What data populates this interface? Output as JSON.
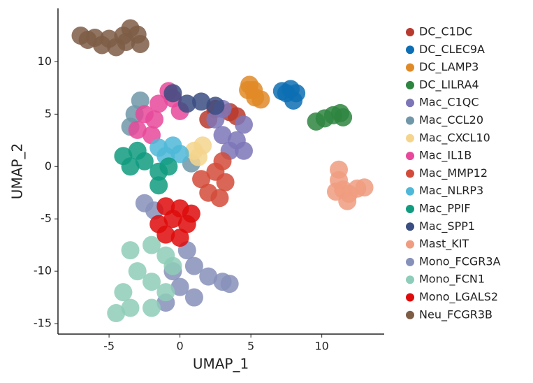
{
  "chart_data": {
    "type": "scatter",
    "x_label": "UMAP_1",
    "y_label": "UMAP_2",
    "xlim": [
      -8.6,
      14.4
    ],
    "ylim": [
      -16,
      15.1
    ],
    "xticks": [
      -5,
      0,
      5,
      10
    ],
    "yticks": [
      -15,
      -10,
      -5,
      0,
      5,
      10
    ],
    "series": [
      {
        "name": "DC_C1DC",
        "color": "#b83a2e",
        "x": [
          2.5,
          3.5,
          4,
          2
        ],
        "y": [
          5.5,
          5.2,
          4.8,
          4.5
        ]
      },
      {
        "name": "DC_CLEC9A",
        "color": "#0d6eb3",
        "x": [
          7.2,
          7.8,
          8.2,
          8.0,
          7.5
        ],
        "y": [
          7.2,
          7.4,
          7.0,
          6.3,
          7.0
        ]
      },
      {
        "name": "DC_LAMP3",
        "color": "#e08a27",
        "x": [
          4.9,
          5.2,
          5.3,
          5.7,
          4.8
        ],
        "y": [
          7.8,
          7.3,
          6.6,
          6.4,
          7.3
        ]
      },
      {
        "name": "DC_LILRA4",
        "color": "#2e8540",
        "x": [
          9.6,
          10.2,
          10.8,
          11.3,
          11.5
        ],
        "y": [
          4.3,
          4.6,
          4.9,
          5.1,
          4.7
        ]
      },
      {
        "name": "Mac_C1QC",
        "color": "#7c75b8",
        "x": [
          3,
          4,
          4.5,
          3.5,
          2.5,
          4.5,
          3
        ],
        "y": [
          3,
          2.5,
          4,
          1.5,
          4.5,
          1.5,
          5.5
        ]
      },
      {
        "name": "Mac_CCL20",
        "color": "#6f97a8",
        "x": [
          -3.2,
          -3.5,
          -2.8,
          0.8
        ],
        "y": [
          5,
          3.8,
          6.3,
          0.3
        ]
      },
      {
        "name": "Mac_CXCL10",
        "color": "#f5d58d",
        "x": [
          1,
          1.6,
          1.3
        ],
        "y": [
          1.5,
          2,
          0.9
        ]
      },
      {
        "name": "Mac_IL1B",
        "color": "#e8489a",
        "x": [
          -2.5,
          -1.5,
          -0.5,
          -3,
          -2,
          -0.8,
          0,
          -1.8
        ],
        "y": [
          5,
          6,
          6.5,
          3.5,
          3,
          7.2,
          5.3,
          4.5
        ]
      },
      {
        "name": "Mac_MMP12",
        "color": "#d24b3a",
        "x": [
          2.5,
          3.2,
          2,
          3,
          1.5,
          2.8
        ],
        "y": [
          -0.5,
          -1.5,
          -2.5,
          0.5,
          -1.2,
          -3
        ]
      },
      {
        "name": "Mac_NLRP3",
        "color": "#4fb8d8",
        "x": [
          -1.5,
          -0.5,
          0,
          -1
        ],
        "y": [
          1.8,
          2,
          1.2,
          1
        ]
      },
      {
        "name": "Mac_PPIF",
        "color": "#119b7f",
        "x": [
          -4,
          -3,
          -2.5,
          -1.5,
          -3.5,
          -1.5,
          -0.8
        ],
        "y": [
          1,
          1.5,
          0.5,
          -0.5,
          0,
          -1.8,
          0
        ]
      },
      {
        "name": "Mac_SPP1",
        "color": "#3b4e82",
        "x": [
          0.5,
          1.5,
          2.5,
          -0.5
        ],
        "y": [
          6,
          6.2,
          5.8,
          7
        ]
      },
      {
        "name": "Mast_KIT",
        "color": "#f09c80",
        "x": [
          11.2,
          11.2,
          11.5,
          11.9,
          12.5,
          11.8,
          11.0,
          13.0
        ],
        "y": [
          -0.3,
          -1.3,
          -2.2,
          -2.6,
          -2.1,
          -3.3,
          -2.4,
          -2.0
        ]
      },
      {
        "name": "Mono_FCGR3A",
        "color": "#8691ba",
        "x": [
          -2.5,
          -1.8,
          0.5,
          1,
          2,
          3,
          0,
          -1,
          1,
          3.5,
          -0.5
        ],
        "y": [
          -3.5,
          -4.2,
          -8,
          -9.5,
          -10.5,
          -11,
          -11.5,
          -13,
          -12.5,
          -11.2,
          -10
        ]
      },
      {
        "name": "Mono_FCN1",
        "color": "#8ecdb9",
        "x": [
          -3.5,
          -2,
          -1,
          -3,
          -2,
          -4,
          -3.5,
          -2,
          -1,
          -4.5,
          -0.5
        ],
        "y": [
          -8,
          -7.5,
          -8.5,
          -10,
          -11,
          -12,
          -13.5,
          -13.5,
          -12,
          -14,
          -9.5
        ]
      },
      {
        "name": "Mono_LGALS2",
        "color": "#de0b0b",
        "x": [
          -1,
          0,
          -1.5,
          -0.5,
          0.5,
          -1,
          0,
          0.8
        ],
        "y": [
          -3.8,
          -4,
          -5.5,
          -5,
          -5.5,
          -6.5,
          -6.8,
          -4.5
        ]
      },
      {
        "name": "Neu_FCGR3B",
        "color": "#7e5d47",
        "x": [
          -7,
          -6,
          -5,
          -4,
          -3,
          -3.5,
          -5.5,
          -4.5,
          -2.8,
          -6.5,
          -3.8
        ],
        "y": [
          12.5,
          12.3,
          12.2,
          12.5,
          12.6,
          13.2,
          11.6,
          11.4,
          11.7,
          12.1,
          11.9
        ]
      }
    ]
  }
}
